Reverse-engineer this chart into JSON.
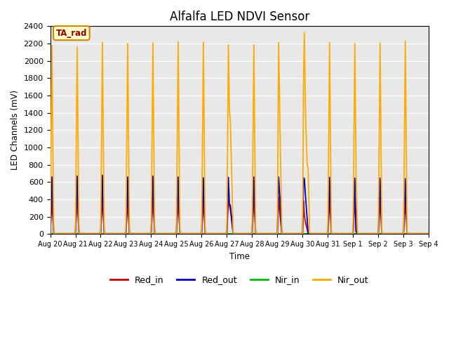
{
  "title": "Alfalfa LED NDVI Sensor",
  "ylabel": "LED Channels (mV)",
  "xlabel": "Time",
  "annotation": "TA_rad",
  "ylim": [
    0,
    2400
  ],
  "x_tick_labels": [
    "Aug 20",
    "Aug 21",
    "Aug 22",
    "Aug 23",
    "Aug 24",
    "Aug 25",
    "Aug 26",
    "Aug 27",
    "Aug 28",
    "Aug 29",
    "Aug 30",
    "Aug 31",
    "Sep 1",
    "Sep 2",
    "Sep 3",
    "Sep 4"
  ],
  "colors": {
    "Red_in": "#cc0000",
    "Red_out": "#0000cc",
    "Nir_in": "#00bb00",
    "Nir_out": "#ffaa00"
  },
  "bg_color": "#e8e8e8",
  "annotation_bg": "#ffffcc",
  "annotation_border": "#cc8800",
  "spike_data": [
    [
      0,
      0.0,
      5,
      5,
      5,
      5
    ],
    [
      0,
      0.07,
      380,
      660,
      5,
      2180
    ],
    [
      0,
      0.14,
      5,
      5,
      5,
      5
    ],
    [
      1,
      0.0,
      5,
      5,
      5,
      5
    ],
    [
      1,
      0.07,
      430,
      670,
      5,
      2160
    ],
    [
      1,
      0.14,
      5,
      5,
      5,
      5
    ],
    [
      2,
      0.0,
      5,
      5,
      5,
      5
    ],
    [
      2,
      0.07,
      415,
      680,
      5,
      2210
    ],
    [
      2,
      0.14,
      5,
      5,
      5,
      5
    ],
    [
      3,
      0.0,
      5,
      5,
      5,
      5
    ],
    [
      3,
      0.07,
      390,
      660,
      5,
      2200
    ],
    [
      3,
      0.14,
      5,
      5,
      5,
      5
    ],
    [
      4,
      0.0,
      5,
      5,
      5,
      5
    ],
    [
      4,
      0.07,
      430,
      670,
      5,
      2205
    ],
    [
      4,
      0.14,
      5,
      5,
      5,
      5
    ],
    [
      5,
      0.0,
      5,
      5,
      5,
      5
    ],
    [
      5,
      0.07,
      400,
      660,
      5,
      2220
    ],
    [
      5,
      0.14,
      5,
      5,
      5,
      5
    ],
    [
      6,
      0.0,
      5,
      5,
      5,
      5
    ],
    [
      6,
      0.07,
      400,
      650,
      5,
      2215
    ],
    [
      6,
      0.14,
      5,
      5,
      5,
      5
    ],
    [
      7,
      0.0,
      5,
      5,
      5,
      5
    ],
    [
      7,
      0.06,
      400,
      655,
      5,
      2185
    ],
    [
      7,
      0.1,
      330,
      350,
      5,
      1460
    ],
    [
      7,
      0.14,
      280,
      330,
      5,
      1290
    ],
    [
      7,
      0.25,
      5,
      5,
      5,
      5
    ],
    [
      8,
      0.0,
      5,
      5,
      5,
      5
    ],
    [
      8,
      0.07,
      430,
      660,
      5,
      2185
    ],
    [
      8,
      0.14,
      5,
      5,
      5,
      5
    ],
    [
      9,
      0.0,
      5,
      5,
      5,
      5
    ],
    [
      9,
      0.05,
      430,
      660,
      5,
      2210
    ],
    [
      9,
      0.1,
      230,
      430,
      5,
      1310
    ],
    [
      9,
      0.18,
      5,
      5,
      5,
      5
    ],
    [
      10,
      0.0,
      5,
      5,
      5,
      5
    ],
    [
      10,
      0.04,
      380,
      650,
      5,
      1820
    ],
    [
      10,
      0.07,
      210,
      640,
      5,
      2330
    ],
    [
      10,
      0.12,
      130,
      420,
      5,
      1380
    ],
    [
      10,
      0.18,
      60,
      180,
      5,
      810
    ],
    [
      10,
      0.22,
      5,
      5,
      5,
      755
    ],
    [
      10,
      0.28,
      5,
      5,
      5,
      5
    ],
    [
      11,
      0.0,
      5,
      5,
      5,
      5
    ],
    [
      11,
      0.07,
      405,
      655,
      5,
      2210
    ],
    [
      11,
      0.14,
      5,
      5,
      5,
      5
    ],
    [
      12,
      0.0,
      5,
      5,
      5,
      5
    ],
    [
      12,
      0.07,
      410,
      645,
      5,
      2200
    ],
    [
      12,
      0.12,
      30,
      30,
      5,
      710
    ],
    [
      12,
      0.18,
      5,
      5,
      5,
      5
    ],
    [
      13,
      0.0,
      5,
      5,
      5,
      5
    ],
    [
      13,
      0.07,
      385,
      645,
      5,
      2205
    ],
    [
      13,
      0.14,
      5,
      5,
      5,
      5
    ],
    [
      14,
      0.0,
      5,
      5,
      5,
      5
    ],
    [
      14,
      0.07,
      390,
      640,
      5,
      2230
    ],
    [
      14,
      0.14,
      5,
      5,
      5,
      5
    ],
    [
      15,
      0.0,
      5,
      5,
      5,
      5
    ]
  ]
}
